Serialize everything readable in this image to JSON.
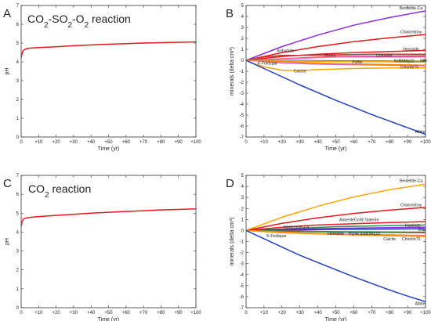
{
  "chart_data": [
    {
      "panel": "A",
      "type": "line",
      "title": "CO2-SO2-O2 reaction",
      "xlabel": "Time (yr)",
      "ylabel": "pH",
      "xlim": [
        0,
        100
      ],
      "ylim": [
        0,
        7
      ],
      "x_ticks": [
        0,
        10,
        20,
        30,
        40,
        50,
        60,
        70,
        80,
        90,
        100
      ],
      "x_tick_labels": [
        "0",
        "+10",
        "+20",
        "+30",
        "+40",
        "+50",
        "+60",
        "+70",
        "+80",
        "+90",
        "+100"
      ],
      "y_ticks": [
        0,
        1,
        2,
        3,
        4,
        5,
        6,
        7
      ],
      "series": [
        {
          "color": "#e41a1c",
          "x": [
            0,
            0.5,
            1,
            2,
            3,
            5,
            10,
            20,
            30,
            40,
            50,
            60,
            70,
            80,
            90,
            100
          ],
          "values": [
            4.2,
            4.45,
            4.58,
            4.65,
            4.7,
            4.73,
            4.76,
            4.8,
            4.86,
            4.9,
            4.94,
            4.97,
            5.0,
            5.02,
            5.04,
            5.06
          ]
        }
      ]
    },
    {
      "panel": "B",
      "type": "line",
      "xlabel": "Time (yr)",
      "ylabel": "minerals (delta cm³)",
      "xlim": [
        0,
        100
      ],
      "ylim": [
        -7,
        5
      ],
      "x_ticks": [
        0,
        10,
        20,
        30,
        40,
        50,
        60,
        70,
        80,
        90,
        100
      ],
      "x_tick_labels": [
        "0",
        "+10",
        "+20",
        "+30",
        "+40",
        "+50",
        "+60",
        "+70",
        "+80",
        "+90",
        "+100"
      ],
      "y_ticks": [
        -7,
        -6,
        -5,
        -4,
        -3,
        -2,
        -1,
        0,
        1,
        2,
        3,
        4,
        5
      ],
      "series": [
        {
          "label": "Beidellite-Ca",
          "color": "#8a2be2",
          "x": [
            0,
            20,
            40,
            60,
            80,
            100
          ],
          "values": [
            0,
            1.25,
            2.3,
            3.2,
            3.9,
            4.5
          ],
          "label_x": 92,
          "label_y": 4.8
        },
        {
          "label": "Chalcedony",
          "color": "#e41a1c",
          "x": [
            0,
            20,
            40,
            60,
            80,
            100
          ],
          "values": [
            0,
            0.7,
            1.25,
            1.7,
            2.05,
            2.35
          ],
          "label_x": 92,
          "label_y": 2.6
        },
        {
          "label": "Hematite",
          "color": "#e41a1c",
          "x": [
            0,
            20,
            40,
            60,
            80,
            100
          ],
          "values": [
            0,
            0.35,
            0.55,
            0.7,
            0.8,
            0.9
          ],
          "label_x": 92,
          "label_y": 1.05
        },
        {
          "label": "Anhydrite",
          "color": "#cc3333",
          "x": [
            0,
            10,
            20,
            30,
            50,
            70,
            100
          ],
          "values": [
            0,
            0.3,
            0.45,
            0.45,
            0.5,
            0.55,
            0.55
          ],
          "label_x": 22,
          "label_y": 0.9
        },
        {
          "label": "Barite",
          "color": "#e41a1c",
          "x": [
            0,
            50,
            100
          ],
          "values": [
            0,
            0.35,
            0.4
          ],
          "label_x": 47,
          "label_y": 0.45
        },
        {
          "label": "Dolomite",
          "color": "#ff69b4",
          "x": [
            0,
            50,
            100
          ],
          "values": [
            0,
            0.3,
            0.3
          ],
          "label_x": 77,
          "label_y": 0.45
        },
        {
          "label": "Illite",
          "color": "#1f3fbf",
          "x": [
            0,
            50,
            100
          ],
          "values": [
            0,
            -0.05,
            -0.1
          ],
          "label_x": 99,
          "label_y": 0.0
        },
        {
          "label": "Sid80Mg10",
          "color": "#2e8b57",
          "x": [
            0,
            50,
            100
          ],
          "values": [
            0,
            -0.1,
            -0.15
          ],
          "label_x": 88,
          "label_y": -0.05
        },
        {
          "label": "Pyrite",
          "color": "#ffa500",
          "x": [
            0,
            50,
            100
          ],
          "values": [
            0,
            -0.1,
            -0.15
          ],
          "label_x": 62,
          "label_y": -0.15
        },
        {
          "label": "K-Feldspar",
          "color": "#cc66cc",
          "x": [
            0,
            10,
            20,
            40,
            60,
            80,
            100
          ],
          "values": [
            0,
            -0.1,
            -0.25,
            -0.35,
            -0.4,
            -0.45,
            -0.5
          ],
          "label_x": 12,
          "label_y": -0.25
        },
        {
          "label": "Chlorite75",
          "color": "#ff8c00",
          "x": [
            0,
            50,
            100
          ],
          "values": [
            0,
            -0.3,
            -0.45
          ],
          "label_x": 91,
          "label_y": -0.6
        },
        {
          "label": "Calcite",
          "color": "#ffa500",
          "x": [
            0,
            5,
            10,
            20,
            30,
            40,
            60,
            80,
            100
          ],
          "values": [
            0,
            -0.35,
            -0.6,
            -0.9,
            -0.95,
            -0.85,
            -0.75,
            -0.7,
            -0.7
          ],
          "label_x": 30,
          "label_y": -0.95
        },
        {
          "label": "Albite",
          "color": "#1f3fbf",
          "x": [
            0,
            10,
            20,
            30,
            40,
            50,
            60,
            70,
            80,
            90,
            100
          ],
          "values": [
            0,
            -0.75,
            -1.5,
            -2.25,
            -2.95,
            -3.65,
            -4.3,
            -4.95,
            -5.55,
            -6.15,
            -6.75
          ],
          "label_x": 97,
          "label_y": -6.5
        }
      ]
    },
    {
      "panel": "C",
      "type": "line",
      "title": "CO2 reaction",
      "xlabel": "Time (yr)",
      "ylabel": "pH",
      "xlim": [
        0,
        100
      ],
      "ylim": [
        0,
        7
      ],
      "x_ticks": [
        0,
        10,
        20,
        30,
        40,
        50,
        60,
        70,
        80,
        90,
        100
      ],
      "x_tick_labels": [
        "0",
        "+10",
        "+20",
        "+30",
        "+40",
        "+50",
        "+60",
        "+70",
        "+80",
        "+90",
        "+100"
      ],
      "y_ticks": [
        0,
        1,
        2,
        3,
        4,
        5,
        6,
        7
      ],
      "series": [
        {
          "color": "#e41a1c",
          "x": [
            0,
            0.5,
            1,
            2,
            3,
            5,
            10,
            20,
            30,
            40,
            50,
            60,
            70,
            80,
            90,
            100
          ],
          "values": [
            4.3,
            4.55,
            4.65,
            4.72,
            4.75,
            4.78,
            4.82,
            4.88,
            4.94,
            5.0,
            5.05,
            5.09,
            5.13,
            5.17,
            5.2,
            5.23
          ]
        }
      ]
    },
    {
      "panel": "D",
      "type": "line",
      "xlabel": "Time (yr)",
      "ylabel": "minerals (delta cm³)",
      "xlim": [
        0,
        100
      ],
      "ylim": [
        -7,
        5
      ],
      "x_ticks": [
        0,
        10,
        20,
        30,
        40,
        50,
        60,
        70,
        80,
        90,
        100
      ],
      "x_tick_labels": [
        "0",
        "+10",
        "+20",
        "+30",
        "+40",
        "+50",
        "+60",
        "+70",
        "+80",
        "+90",
        "+100"
      ],
      "y_ticks": [
        -7,
        -6,
        -5,
        -4,
        -3,
        -2,
        -1,
        0,
        1,
        2,
        3,
        4,
        5
      ],
      "series": [
        {
          "label": "Beidellite-Ca",
          "color": "#ffa500",
          "x": [
            0,
            20,
            40,
            60,
            80,
            100
          ],
          "values": [
            0,
            1.2,
            2.2,
            3.05,
            3.7,
            4.2
          ],
          "label_x": 92,
          "label_y": 4.55
        },
        {
          "label": "Chalcedony",
          "color": "#e41a1c",
          "x": [
            0,
            20,
            40,
            60,
            80,
            100
          ],
          "values": [
            0,
            0.65,
            1.15,
            1.55,
            1.85,
            2.1
          ],
          "label_x": 92,
          "label_y": 2.35
        },
        {
          "label": "AnkeriteDo90 Siderite",
          "color": "#e41a1c",
          "x": [
            0,
            20,
            40,
            60,
            80,
            100
          ],
          "values": [
            0,
            0.3,
            0.5,
            0.62,
            0.72,
            0.8
          ],
          "label_x": 63,
          "label_y": 1.0
        },
        {
          "label": "Kaolinite",
          "color": "#2e8b57",
          "x": [
            0,
            50,
            100
          ],
          "values": [
            0,
            0.35,
            0.5
          ],
          "label_x": 93,
          "label_y": 0.5
        },
        {
          "label": "Nontronite-Ca",
          "color": "#8a2be2",
          "x": [
            0,
            50,
            100
          ],
          "values": [
            0,
            0.2,
            0.3
          ],
          "label_x": 28,
          "label_y": 0.35
        },
        {
          "label": "Illite",
          "color": "#1f3fbf",
          "x": [
            0,
            50,
            100
          ],
          "values": [
            0,
            0.1,
            0.15
          ],
          "label_x": 98,
          "label_y": 0.1
        },
        {
          "label": "Hematite",
          "color": "#cc3333",
          "x": [
            0,
            50,
            100
          ],
          "values": [
            0,
            -0.1,
            -0.15
          ],
          "label_x": 50,
          "label_y": -0.25
        },
        {
          "label": "Pyrite",
          "color": "#ffa500",
          "x": [
            0,
            50,
            100
          ],
          "values": [
            0,
            -0.15,
            -0.2
          ],
          "label_x": 60,
          "label_y": -0.25
        },
        {
          "label": "Sid80Mg10",
          "color": "#2e8b57",
          "x": [
            0,
            50,
            100
          ],
          "values": [
            0,
            -0.15,
            -0.2
          ],
          "label_x": 69,
          "label_y": -0.25
        },
        {
          "label": "K-Feldspar",
          "color": "#cc66cc",
          "x": [
            0,
            20,
            40,
            60,
            80,
            100
          ],
          "values": [
            0,
            -0.2,
            -0.3,
            -0.35,
            -0.4,
            -0.45
          ],
          "label_x": 17,
          "label_y": -0.45
        },
        {
          "label": "Calcite",
          "color": "#ffa500",
          "x": [
            0,
            20,
            40,
            60,
            80,
            100
          ],
          "values": [
            0,
            -0.2,
            -0.3,
            -0.4,
            -0.45,
            -0.5
          ],
          "label_x": 80,
          "label_y": -0.75
        },
        {
          "label": "Chlorite75",
          "color": "#ff8c00",
          "x": [
            0,
            50,
            100
          ],
          "values": [
            0,
            -0.35,
            -0.55
          ],
          "label_x": 92,
          "label_y": -0.75
        },
        {
          "label": "Albite",
          "color": "#1f3fbf",
          "x": [
            0,
            10,
            20,
            30,
            40,
            50,
            60,
            70,
            80,
            90,
            100
          ],
          "values": [
            0,
            -0.75,
            -1.5,
            -2.25,
            -2.9,
            -3.55,
            -4.2,
            -4.8,
            -5.4,
            -5.95,
            -6.45
          ],
          "label_x": 97,
          "label_y": -6.6
        }
      ]
    }
  ]
}
